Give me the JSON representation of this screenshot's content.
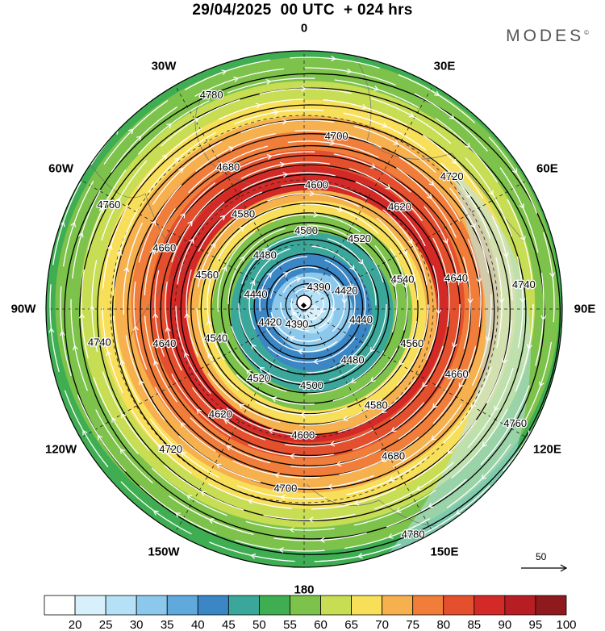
{
  "title": "29/04/2025  00 UTC  + 024 hrs",
  "brand": {
    "name": "MODES",
    "mark": "©"
  },
  "longitude_labels": [
    {
      "text": "0",
      "lon": 0
    },
    {
      "text": "30E",
      "lon": 30
    },
    {
      "text": "60E",
      "lon": 60
    },
    {
      "text": "90E",
      "lon": 90
    },
    {
      "text": "120E",
      "lon": 120
    },
    {
      "text": "150E",
      "lon": 150
    },
    {
      "text": "180",
      "lon": 180
    },
    {
      "text": "150W",
      "lon": 210
    },
    {
      "text": "120W",
      "lon": 240
    },
    {
      "text": "90W",
      "lon": 270
    },
    {
      "text": "60W",
      "lon": 300
    },
    {
      "text": "30W",
      "lon": 330
    }
  ],
  "wind_speed_colorbar": {
    "labels": [
      "20",
      "25",
      "30",
      "35",
      "40",
      "45",
      "50",
      "55",
      "60",
      "65",
      "70",
      "75",
      "80",
      "85",
      "90",
      "95",
      "100"
    ],
    "colors": [
      "#ffffff",
      "#d8f0fb",
      "#b5e1f6",
      "#8cc8ec",
      "#5fa9dc",
      "#3b86c4",
      "#3aa79a",
      "#3fae52",
      "#7dc24a",
      "#c7dd54",
      "#f7df5a",
      "#f6b04d",
      "#f07e3a",
      "#e4502d",
      "#d32a27",
      "#b61e24",
      "#8f1a1e"
    ]
  },
  "wind_speed_field": [
    {
      "radius_fraction": 1.0,
      "band": "50-55"
    },
    {
      "radius_fraction": 0.93,
      "band": "55-60"
    },
    {
      "radius_fraction": 0.84,
      "band": "60-65"
    },
    {
      "radius_fraction": 0.77,
      "band": "65-70"
    },
    {
      "radius_fraction": 0.71,
      "band": "70-75"
    },
    {
      "radius_fraction": 0.65,
      "band": "75-80"
    },
    {
      "radius_fraction": 0.58,
      "band": "80-85"
    },
    {
      "radius_fraction": 0.52,
      "band": "85-90"
    },
    {
      "radius_fraction": 0.46,
      "band": "70-75"
    },
    {
      "radius_fraction": 0.42,
      "band": "65-70"
    },
    {
      "radius_fraction": 0.37,
      "band": "55-60"
    },
    {
      "radius_fraction": 0.3,
      "band": "45-50"
    },
    {
      "radius_fraction": 0.22,
      "band": "40-45"
    },
    {
      "radius_fraction": 0.15,
      "band": "30-35"
    },
    {
      "radius_fraction": 0.08,
      "band": "25-30"
    },
    {
      "radius_fraction": 0.03,
      "band": "20-25"
    }
  ],
  "height_contours": [
    {
      "value": "4390",
      "radius_fraction": 0.085
    },
    {
      "value": "4420",
      "radius_fraction": 0.16
    },
    {
      "value": "4440",
      "radius_fraction": 0.21
    },
    {
      "value": "4480",
      "radius_fraction": 0.27
    },
    {
      "value": "4500",
      "radius_fraction": 0.31
    },
    {
      "value": "4520",
      "radius_fraction": 0.34
    },
    {
      "value": "4540",
      "radius_fraction": 0.38
    },
    {
      "value": "4560",
      "radius_fraction": 0.42
    },
    {
      "value": "4580",
      "radius_fraction": 0.46
    },
    {
      "value": "4600",
      "radius_fraction": 0.5
    },
    {
      "value": "4620",
      "radius_fraction": 0.54
    },
    {
      "value": "4640",
      "radius_fraction": 0.58
    },
    {
      "value": "4660",
      "radius_fraction": 0.62
    },
    {
      "value": "4680",
      "radius_fraction": 0.66
    },
    {
      "value": "4700",
      "radius_fraction": 0.71
    },
    {
      "value": "4720",
      "radius_fraction": 0.77
    },
    {
      "value": "4740",
      "radius_fraction": 0.83
    },
    {
      "value": "4760",
      "radius_fraction": 0.9
    },
    {
      "value": "4780",
      "radius_fraction": 0.96
    }
  ],
  "reference_vector": {
    "label": "50"
  }
}
